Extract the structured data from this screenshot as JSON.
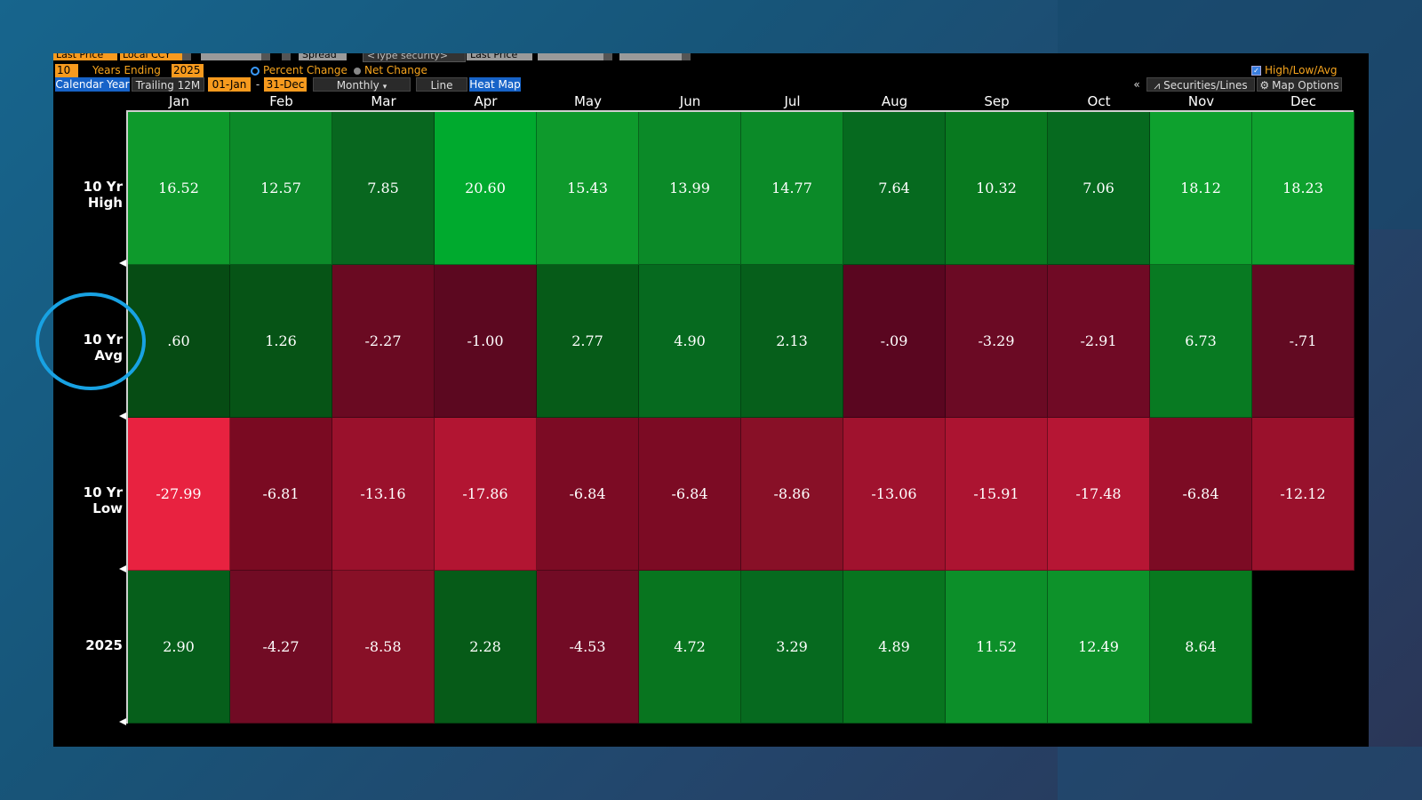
{
  "toolbar_top": {
    "field1": "Last Price",
    "currency": "Local CCY",
    "spread": "Spread",
    "security_placeholder": "<Type security>",
    "field2": "Last Price"
  },
  "toolbar_settings": {
    "years": "10",
    "years_ending_label": "Years Ending",
    "year_end": "2025",
    "percent_change": "Percent Change",
    "net_change": "Net Change",
    "high_low_avg": "High/Low/Avg"
  },
  "toolbar_view": {
    "calendar_year": "Calendar Year",
    "trailing": "Trailing 12M",
    "start_date": "01-Jan",
    "dash": "-",
    "end_date": "31-Dec",
    "period": "Monthly",
    "line": "Line",
    "heat_map": "Heat Map",
    "collapse": "«",
    "securities_lines": "Securities/Lines",
    "map_options": "Map Options"
  },
  "months": [
    "Jan",
    "Feb",
    "Mar",
    "Apr",
    "May",
    "Jun",
    "Jul",
    "Aug",
    "Sep",
    "Oct",
    "Nov",
    "Dec"
  ],
  "rows": [
    {
      "label": "10 Yr High",
      "values": [
        "16.52",
        "12.57",
        "7.85",
        "20.60",
        "15.43",
        "13.99",
        "14.77",
        "7.64",
        "10.32",
        "7.06",
        "18.12",
        "18.23"
      ],
      "colors": [
        "#0e9a2c",
        "#0c8a29",
        "#08671f",
        "#00aa2e",
        "#0e9a2c",
        "#0b8a28",
        "#0b8a28",
        "#066a1f",
        "#08791f",
        "#066a1f",
        "#0ea12e",
        "#0ea12e"
      ]
    },
    {
      "label": "10 Yr Avg",
      "values": [
        ".60",
        "1.26",
        "-2.27",
        "-1.00",
        "2.77",
        "4.90",
        "2.13",
        "-.09",
        "-3.29",
        "-2.91",
        "6.73",
        "-.71"
      ],
      "colors": [
        "#064c14",
        "#065416",
        "#6a0a22",
        "#5c0820",
        "#065b18",
        "#066a1f",
        "#065f1b",
        "#5a0620",
        "#6b0a24",
        "#700a25",
        "#087a22",
        "#620a22"
      ]
    },
    {
      "label": "10 Yr Low",
      "values": [
        "-27.99",
        "-6.81",
        "-13.16",
        "-17.86",
        "-6.84",
        "-6.84",
        "-8.86",
        "-13.06",
        "-15.91",
        "-17.48",
        "-6.84",
        "-12.12"
      ],
      "colors": [
        "#e82240",
        "#7a0a22",
        "#9a112c",
        "#b21532",
        "#7c0b24",
        "#7c0b24",
        "#881027",
        "#a0122e",
        "#ac1431",
        "#b61634",
        "#7c0b24",
        "#9a112c"
      ]
    },
    {
      "label": "2025",
      "values": [
        "2.90",
        "-4.27",
        "-8.58",
        "2.28",
        "-4.53",
        "4.72",
        "3.29",
        "4.89",
        "11.52",
        "12.49",
        "8.64",
        ""
      ],
      "colors": [
        "#065f1b",
        "#710b24",
        "#881027",
        "#065b18",
        "#720b25",
        "#08751f",
        "#066a1f",
        "#08751f",
        "#0c8f29",
        "#0d922a",
        "#08791f",
        "#000000"
      ]
    }
  ]
}
